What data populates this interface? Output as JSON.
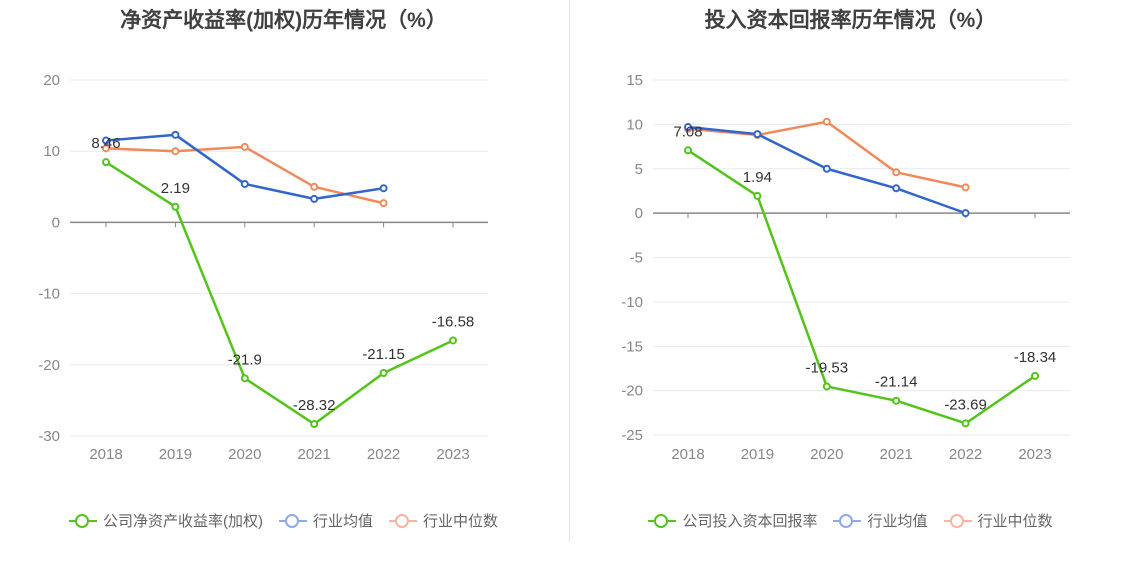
{
  "colors": {
    "company": "#52c41a",
    "avg": "#3366cc",
    "median": "#f08a5d",
    "avg_legend": "#8fa8f0",
    "median_legend": "#f8b4a0"
  },
  "charts": [
    {
      "title": "净资产收益率(加权)历年情况（%）",
      "legend": [
        "公司净资产收益率(加权)",
        "行业均值",
        "行业中位数"
      ],
      "chart_data": {
        "type": "line",
        "title": "净资产收益率(加权)历年情况（%）",
        "categories": [
          "2018",
          "2019",
          "2020",
          "2021",
          "2022",
          "2023"
        ],
        "ylim": [
          -30,
          20
        ],
        "yticks": [
          20,
          10,
          0,
          -10,
          -20,
          -30
        ],
        "grid": true,
        "legend_position": "bottom",
        "series": [
          {
            "name": "公司净资产收益率(加权)",
            "values": [
              8.46,
              2.19,
              -21.9,
              -28.32,
              -21.15,
              -16.58
            ],
            "labels": [
              "8.46",
              "2.19",
              "-21.9",
              "-28.32",
              "-21.15",
              "-16.58"
            ]
          },
          {
            "name": "行业均值",
            "values": [
              11.5,
              12.3,
              5.4,
              3.3,
              4.8,
              null
            ]
          },
          {
            "name": "行业中位数",
            "values": [
              10.4,
              10.0,
              10.6,
              5.0,
              2.7,
              null
            ]
          }
        ]
      }
    },
    {
      "title": "投入资本回报率历年情况（%）",
      "legend": [
        "公司投入资本回报率",
        "行业均值",
        "行业中位数"
      ],
      "chart_data": {
        "type": "line",
        "title": "投入资本回报率历年情况（%）",
        "categories": [
          "2018",
          "2019",
          "2020",
          "2021",
          "2022",
          "2023"
        ],
        "ylim": [
          -25,
          15
        ],
        "yticks": [
          15,
          10,
          5,
          0,
          -5,
          -10,
          -15,
          -20,
          -25
        ],
        "grid": true,
        "legend_position": "bottom",
        "series": [
          {
            "name": "公司投入资本回报率",
            "values": [
              7.08,
              1.94,
              -19.53,
              -21.14,
              -23.69,
              -18.34
            ],
            "labels": [
              "7.08",
              "1.94",
              "-19.53",
              "-21.14",
              "-23.69",
              "-18.34"
            ]
          },
          {
            "name": "行业均值",
            "values": [
              9.7,
              8.9,
              5.0,
              2.8,
              0.0,
              null
            ]
          },
          {
            "name": "行业中位数",
            "values": [
              9.5,
              8.8,
              10.3,
              4.6,
              2.9,
              null
            ]
          }
        ]
      }
    }
  ]
}
